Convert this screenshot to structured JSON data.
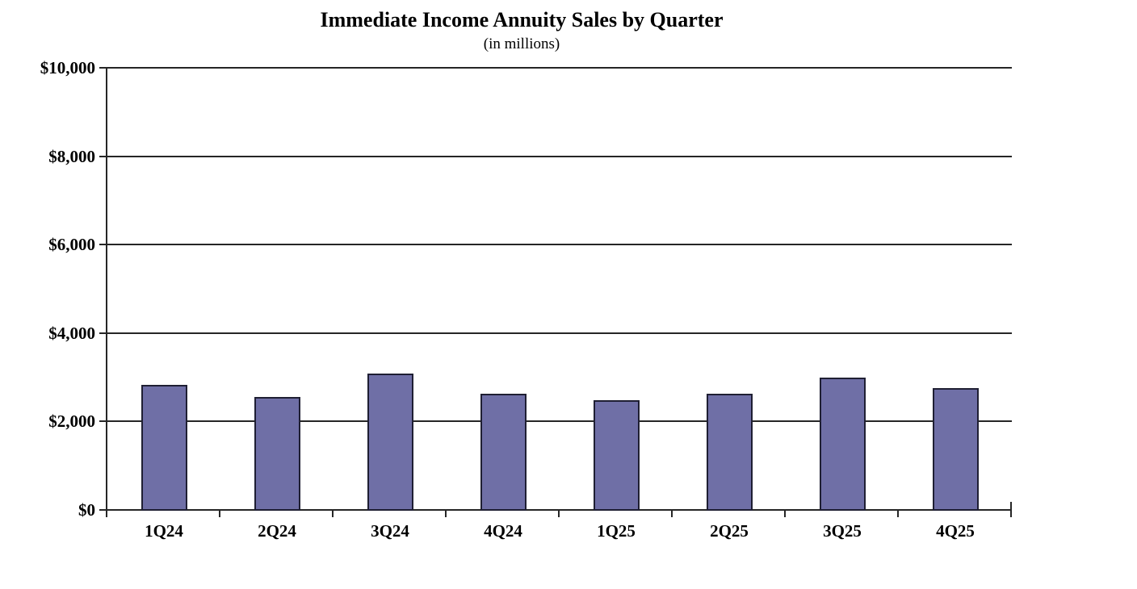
{
  "chart_data": {
    "type": "bar",
    "title": "Immediate Income Annuity Sales by Quarter",
    "subtitle": "(in millions)",
    "categories": [
      "1Q24",
      "2Q24",
      "3Q24",
      "4Q24",
      "1Q25",
      "2Q25",
      "3Q25",
      "4Q25"
    ],
    "values": [
      2825,
      2550,
      3075,
      2625,
      2475,
      2625,
      3000,
      2750
    ],
    "xlabel": "",
    "ylabel": "",
    "ylim": [
      0,
      10000
    ],
    "ytick_interval": 2000,
    "ytick_labels": [
      "$0",
      "$2,000",
      "$4,000",
      "$6,000",
      "$8,000",
      "$10,000"
    ],
    "grid": true,
    "legend": "none",
    "colors": {
      "bar_fill": "#6F6FA6",
      "bar_border": "#1F1F33",
      "axis_and_grid": "#262626",
      "text": "#000000",
      "background": "#FFFFFF"
    }
  }
}
